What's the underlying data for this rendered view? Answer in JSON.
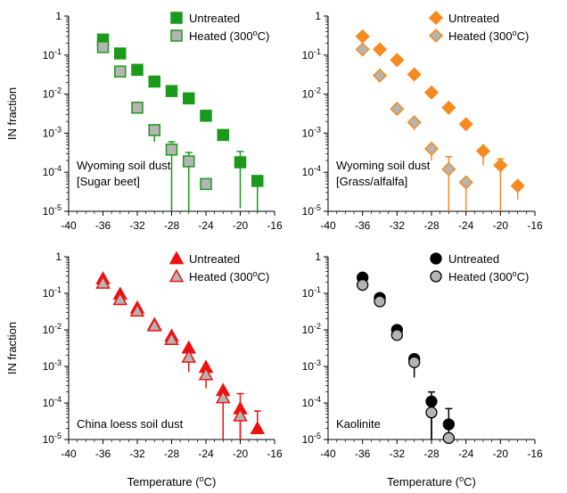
{
  "chart_data": [
    {
      "type": "scatter",
      "panel_label": [
        "Wyoming soil dust",
        "[Sugar beet]"
      ],
      "ylabel": "IN fraction",
      "xlabel": "",
      "xlim": [
        -40,
        -16
      ],
      "ylim": [
        1e-05,
        1
      ],
      "yscale": "log",
      "x_ticks": [
        "-40",
        "-36",
        "-32",
        "-28",
        "-24",
        "-20",
        "-16"
      ],
      "marker": "square",
      "series": [
        {
          "name": "Untreated",
          "color": "#1a9a1a",
          "fill": "#1a9a1a",
          "x": [
            -36,
            -34,
            -32,
            -30,
            -28,
            -26,
            -24,
            -22,
            -20,
            -18
          ],
          "y": [
            0.25,
            0.11,
            0.042,
            0.021,
            0.012,
            0.0078,
            0.0028,
            0.0009,
            0.00018,
            6e-05
          ],
          "err_low": [
            null,
            null,
            null,
            null,
            null,
            null,
            null,
            null,
            1.2e-05,
            1e-05
          ],
          "err_high": [
            null,
            null,
            null,
            null,
            null,
            null,
            null,
            null,
            0.00034,
            null
          ]
        },
        {
          "name": "Heated (300°C)",
          "color": "#1a9a1a",
          "fill": "#b4b4b4",
          "x": [
            -36,
            -34,
            -32,
            -30,
            -28,
            -26,
            -24
          ],
          "y": [
            0.16,
            0.038,
            0.0045,
            0.0012,
            0.00038,
            0.00019,
            5e-05
          ],
          "err_low": [
            null,
            null,
            null,
            0.0006,
            1e-05,
            1e-05,
            null
          ],
          "err_high": [
            null,
            null,
            null,
            0.0016,
            0.0006,
            0.00032,
            null
          ]
        }
      ]
    },
    {
      "type": "scatter",
      "panel_label": [
        "Wyoming soil dust",
        "[Grass/alfalfa]"
      ],
      "ylabel": "",
      "xlabel": "",
      "xlim": [
        -40,
        -16
      ],
      "ylim": [
        1e-05,
        1
      ],
      "yscale": "log",
      "x_ticks": [
        "-40",
        "-36",
        "-32",
        "-28",
        "-24",
        "-20",
        "-16"
      ],
      "marker": "diamond",
      "series": [
        {
          "name": "Untreated",
          "color": "#f58a1f",
          "fill": "#f58a1f",
          "x": [
            -36,
            -34,
            -32,
            -30,
            -28,
            -26,
            -24,
            -22,
            -20,
            -18
          ],
          "y": [
            0.3,
            0.14,
            0.075,
            0.032,
            0.011,
            0.0045,
            0.0017,
            0.00035,
            0.00015,
            4.5e-05
          ],
          "err_low": [
            null,
            null,
            null,
            null,
            null,
            null,
            null,
            0.00015,
            1e-05,
            2e-05
          ],
          "err_high": [
            null,
            null,
            null,
            null,
            null,
            null,
            null,
            null,
            0.00022,
            null
          ]
        },
        {
          "name": "Heated (300°C)",
          "color": "#f58a1f",
          "fill": "#b4b4b4",
          "x": [
            -36,
            -34,
            -32,
            -30,
            -28,
            -26,
            -24
          ],
          "y": [
            0.14,
            0.03,
            0.0042,
            0.0019,
            0.0004,
            0.00012,
            5.5e-05
          ],
          "err_low": [
            null,
            null,
            null,
            0.0012,
            0.0002,
            1e-05,
            1e-05
          ],
          "err_high": [
            null,
            null,
            null,
            null,
            null,
            0.00025,
            null
          ]
        }
      ]
    },
    {
      "type": "scatter",
      "panel_label": [
        "China loess soil dust"
      ],
      "ylabel": "IN fraction",
      "xlabel": "Temperature (°C)",
      "xlim": [
        -40,
        -16
      ],
      "ylim": [
        1e-05,
        1
      ],
      "yscale": "log",
      "x_ticks": [
        "-40",
        "-36",
        "-32",
        "-28",
        "-24",
        "-20",
        "-16"
      ],
      "marker": "triangle",
      "series": [
        {
          "name": "Untreated",
          "color": "#ee1111",
          "fill": "#ee1111",
          "x": [
            -36,
            -34,
            -32,
            -30,
            -28,
            -26,
            -24,
            -22,
            -20,
            -18
          ],
          "y": [
            0.25,
            0.095,
            0.04,
            0.014,
            0.0068,
            0.0032,
            0.00095,
            0.00022,
            7e-05,
            2e-05
          ],
          "err_low": [
            null,
            null,
            null,
            null,
            null,
            null,
            null,
            1e-05,
            1e-05,
            null
          ],
          "err_high": [
            null,
            null,
            null,
            null,
            null,
            null,
            null,
            null,
            0.00018,
            6e-05
          ]
        },
        {
          "name": "Heated (300°C)",
          "color": "#ee1111",
          "fill": "#b4b4b4",
          "x": [
            -36,
            -34,
            -32,
            -30,
            -28,
            -26,
            -24,
            -22,
            -20
          ],
          "y": [
            0.19,
            0.068,
            0.033,
            0.013,
            0.0055,
            0.0018,
            0.0006,
            0.00014,
            4.5e-05
          ],
          "err_low": [
            null,
            null,
            null,
            null,
            null,
            0.0007,
            0.00025,
            1e-05,
            1e-05
          ],
          "err_high": [
            null,
            null,
            null,
            null,
            null,
            null,
            null,
            null,
            null
          ]
        }
      ]
    },
    {
      "type": "scatter",
      "panel_label": [
        "Kaolinite"
      ],
      "ylabel": "",
      "xlabel": "Temperature (°C)",
      "xlim": [
        -40,
        -16
      ],
      "ylim": [
        1e-05,
        1
      ],
      "yscale": "log",
      "x_ticks": [
        "-40",
        "-36",
        "-32",
        "-28",
        "-24",
        "-20",
        "-16"
      ],
      "marker": "circle",
      "series": [
        {
          "name": "Untreated",
          "color": "#000000",
          "fill": "#000000",
          "x": [
            -36,
            -34,
            -32,
            -30,
            -28,
            -26
          ],
          "y": [
            0.27,
            0.075,
            0.01,
            0.0016,
            0.00011,
            2.6e-05
          ],
          "err_low": [
            null,
            null,
            null,
            0.0005,
            1e-05,
            1e-05
          ],
          "err_high": [
            null,
            null,
            null,
            null,
            0.0002,
            7e-05
          ]
        },
        {
          "name": "Heated (300°C)",
          "color": "#000000",
          "fill": "#b4b4b4",
          "x": [
            -36,
            -34,
            -32,
            -30,
            -28,
            -26
          ],
          "y": [
            0.17,
            0.06,
            0.0072,
            0.0013,
            5.5e-05,
            1.1e-05
          ],
          "err_low": [
            null,
            null,
            null,
            null,
            1e-05,
            null
          ],
          "err_high": [
            null,
            null,
            null,
            null,
            null,
            null
          ]
        }
      ]
    }
  ],
  "y_tick_labels": [
    {
      "base": "10",
      "exp": "-5"
    },
    {
      "base": "10",
      "exp": "-4"
    },
    {
      "base": "10",
      "exp": "-3"
    },
    {
      "base": "10",
      "exp": "-2"
    },
    {
      "base": "10",
      "exp": "-1"
    },
    {
      "base": "1",
      "exp": ""
    }
  ],
  "legend": {
    "untreated": "Untreated",
    "heated_prefix": "Heated (300",
    "heated_sup": "o",
    "heated_suffix": "C)"
  },
  "xlabel_parts": {
    "prefix": "Temperature (",
    "sup": "o",
    "suffix": "C)"
  }
}
